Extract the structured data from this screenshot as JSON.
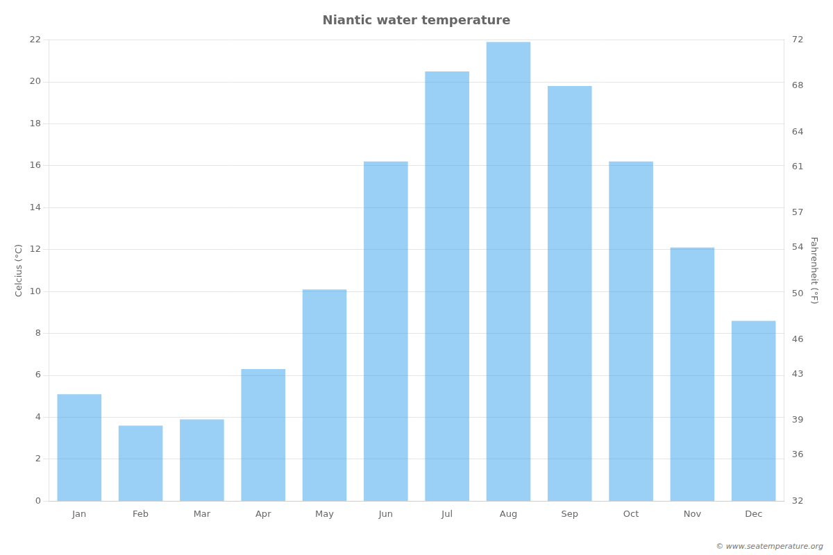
{
  "chart_data": {
    "type": "bar",
    "title": "Niantic water temperature",
    "categories": [
      "Jan",
      "Feb",
      "Mar",
      "Apr",
      "May",
      "Jun",
      "Jul",
      "Aug",
      "Sep",
      "Oct",
      "Nov",
      "Dec"
    ],
    "values": [
      5.1,
      3.6,
      3.9,
      6.3,
      10.1,
      16.2,
      20.5,
      21.9,
      19.8,
      16.2,
      12.1,
      8.6
    ],
    "ylim": [
      0,
      22
    ],
    "yticks": [
      0,
      2,
      4,
      6,
      8,
      10,
      12,
      14,
      16,
      18,
      20,
      22
    ],
    "y2lim": [
      32,
      72
    ],
    "y2ticks": [
      32,
      36,
      39,
      43,
      46,
      50,
      54,
      57,
      61,
      64,
      68,
      72
    ],
    "ylabel": "Celcius (°C)",
    "y2label": "Fahrenheit (°F)",
    "grid": true,
    "annotations": [
      "© www.seatemperature.org"
    ]
  }
}
